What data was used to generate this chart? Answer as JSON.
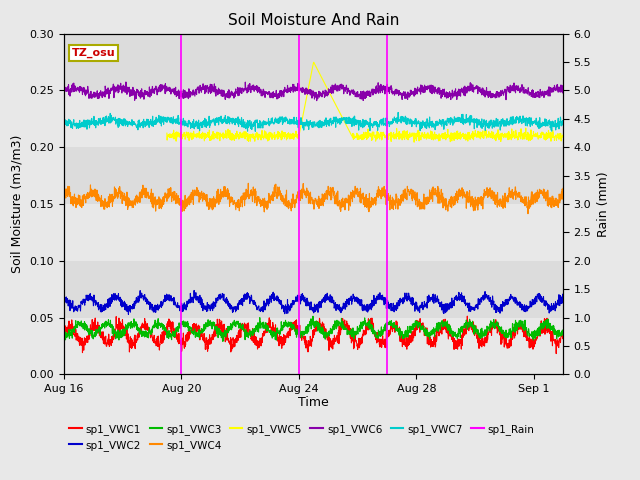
{
  "title": "Soil Moisture And Rain",
  "xlabel": "Time",
  "ylabel_left": "Soil Moisture (m3/m3)",
  "ylabel_right": "Rain (mm)",
  "ylim_left": [
    0.0,
    0.3
  ],
  "ylim_right": [
    0.0,
    6.0
  ],
  "yticks_left": [
    0.0,
    0.05,
    0.1,
    0.15,
    0.2,
    0.25,
    0.3
  ],
  "yticks_right": [
    0.0,
    0.5,
    1.0,
    1.5,
    2.0,
    2.5,
    3.0,
    3.5,
    4.0,
    4.5,
    5.0,
    5.5,
    6.0
  ],
  "xlim_days": [
    0,
    17
  ],
  "x_tick_labels": [
    "Aug 16",
    "Aug 20",
    "Aug 24",
    "Aug 28",
    "Sep 1"
  ],
  "x_tick_positions": [
    0,
    4,
    8,
    12,
    16
  ],
  "annotation_label": "TZ_osu",
  "background_color": "#e8e8e8",
  "plot_bg_color": "#dcdcdc",
  "grid_band_color": "#e8e8e8",
  "vertical_lines": [
    4.0,
    8.0,
    11.0
  ],
  "vertical_line_color": "#ff00ff",
  "series": {
    "sp1_VWC1": {
      "color": "#ff0000",
      "base": 0.035,
      "amplitude": 0.008,
      "period": 0.85,
      "phase": 0.0,
      "noise": 0.003,
      "start": 0,
      "end": 17
    },
    "sp1_VWC2": {
      "color": "#0000cc",
      "base": 0.063,
      "amplitude": 0.005,
      "period": 0.9,
      "phase": 0.3,
      "noise": 0.002,
      "start": 0,
      "end": 17
    },
    "sp1_VWC3": {
      "color": "#00bb00",
      "base": 0.04,
      "amplitude": 0.005,
      "period": 0.88,
      "phase": 0.6,
      "noise": 0.002,
      "start": 0,
      "end": 17
    },
    "sp1_VWC4": {
      "color": "#ff8800",
      "base": 0.155,
      "amplitude": 0.005,
      "period": 0.9,
      "phase": 0.2,
      "noise": 0.003,
      "start": 0,
      "end": 17
    },
    "sp1_VWC6": {
      "color": "#8800aa",
      "base": 0.249,
      "amplitude": 0.003,
      "period": 1.5,
      "phase": 0.0,
      "noise": 0.002,
      "start": 0,
      "end": 17
    },
    "sp1_VWC7": {
      "color": "#00cccc",
      "base": 0.222,
      "amplitude": 0.002,
      "period": 2.0,
      "phase": 0.5,
      "noise": 0.002,
      "start": 0,
      "end": 17
    }
  },
  "vwc5_color": "#ffff00",
  "vwc5_base": 0.21,
  "vwc5_start_day": 3.5,
  "vwc5_flat_noise": 0.002,
  "vwc5_spike_start": 8.0,
  "vwc5_spike_peak": 0.275,
  "vwc5_spike_peak_day": 8.5,
  "vwc5_drop_end_day": 9.8,
  "vwc5_after_val": 0.21,
  "legend": [
    {
      "label": "sp1_VWC1",
      "color": "#ff0000"
    },
    {
      "label": "sp1_VWC2",
      "color": "#0000cc"
    },
    {
      "label": "sp1_VWC3",
      "color": "#00bb00"
    },
    {
      "label": "sp1_VWC4",
      "color": "#ff8800"
    },
    {
      "label": "sp1_VWC5",
      "color": "#ffff00"
    },
    {
      "label": "sp1_VWC6",
      "color": "#8800aa"
    },
    {
      "label": "sp1_VWC7",
      "color": "#00cccc"
    },
    {
      "label": "sp1_Rain",
      "color": "#ff00ff"
    }
  ]
}
